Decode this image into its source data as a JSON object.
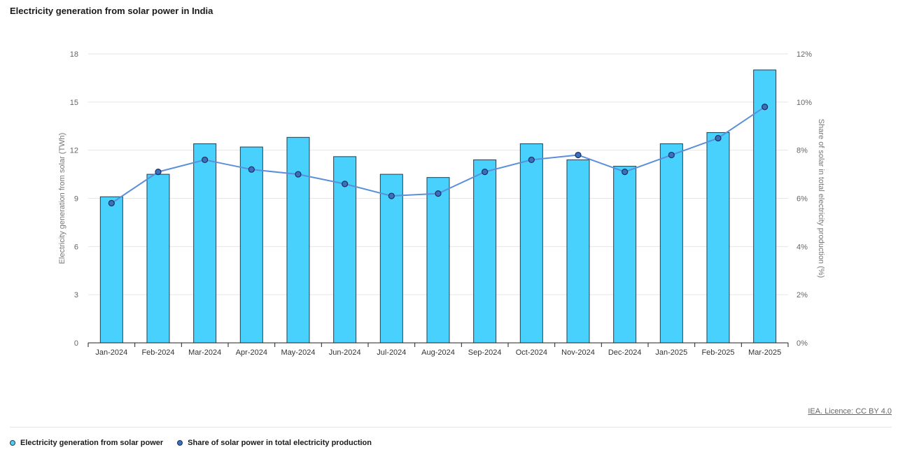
{
  "title": "Electricity generation from solar power in India",
  "source_link": "IEA. Licence: CC BY 4.0",
  "colors": {
    "bar_fill": "#48d1fd",
    "bar_stroke": "#2a3b47",
    "line": "#5b8fd9",
    "marker_fill": "#3a6fc4",
    "marker_stroke": "#1c2f55"
  },
  "chart_data": {
    "type": "bar",
    "categories": [
      "Jan-2024",
      "Feb-2024",
      "Mar-2024",
      "Apr-2024",
      "May-2024",
      "Jun-2024",
      "Jul-2024",
      "Aug-2024",
      "Sep-2024",
      "Oct-2024",
      "Nov-2024",
      "Dec-2024",
      "Jan-2025",
      "Feb-2025",
      "Mar-2025"
    ],
    "series": [
      {
        "name": "Electricity generation from solar power",
        "type": "bar",
        "axis": "left",
        "values": [
          9.1,
          10.5,
          12.4,
          12.2,
          12.8,
          11.6,
          10.5,
          10.3,
          11.4,
          12.4,
          11.4,
          11.0,
          12.4,
          13.1,
          17.0
        ]
      },
      {
        "name": "Share of solar power in total electricity production",
        "type": "line",
        "axis": "right",
        "values": [
          5.8,
          7.1,
          7.6,
          7.2,
          7.0,
          6.6,
          6.1,
          6.2,
          7.1,
          7.6,
          7.8,
          7.1,
          7.8,
          8.5,
          9.8
        ]
      }
    ],
    "ylabel": "Electricity generation from solar (TWh)",
    "ylabel_right": "Share of solar in total electricity production (%)",
    "ylim": [
      0,
      18
    ],
    "ylim_right": [
      0,
      12
    ],
    "yticks": [
      "0",
      "3",
      "6",
      "9",
      "12",
      "15",
      "18"
    ],
    "yticks_right": [
      "0%",
      "2%",
      "4%",
      "6%",
      "8%",
      "10%",
      "12%"
    ],
    "grid": true,
    "legend": "bottom-left"
  }
}
